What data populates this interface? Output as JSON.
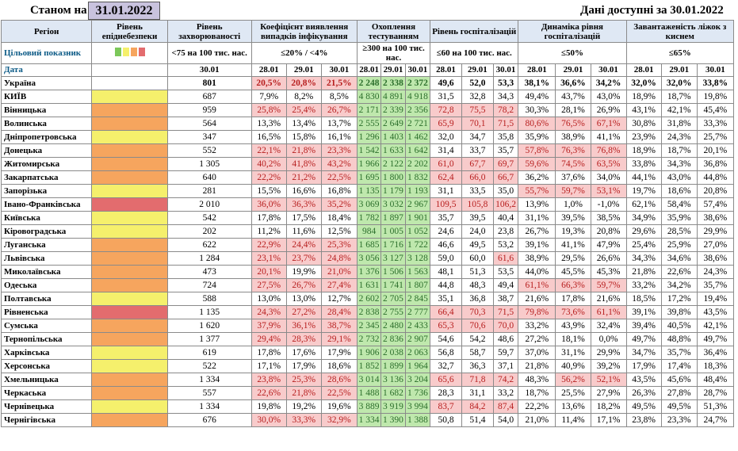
{
  "header": {
    "asof_label": "Станом на",
    "asof_date": "31.01.2022",
    "data_available": "Дані доступні за 30.01.2022"
  },
  "columns": {
    "region": "Регіон",
    "risk": "Рівень епіднебезпеки",
    "incidence": "Рівень захворюваності",
    "positivity": "Коефіцієнт виявлення випадків інфікування",
    "testing": "Охоплення тестуванням",
    "hosp": "Рівень госпіталізацій",
    "hosp_dyn": "Динаміка рівня госпіталізацій",
    "oxygen": "Завантаженість ліжок з киснем"
  },
  "targets": {
    "label": "Цільовий показник",
    "incidence": "<75 на 100 тис. нас.",
    "positivity": "≤20% / <4%",
    "testing": "≥300 на 100 тис. нас.",
    "hosp": "≤60 на 100 тис. нас.",
    "hosp_dyn": "≤50%",
    "oxygen": "≤65%"
  },
  "risk_legend_colors": [
    "#7cc85a",
    "#f5f06c",
    "#f6a55e",
    "#e36c6e"
  ],
  "dates": {
    "label": "Дата",
    "incidence": "30.01",
    "triple": [
      "28.01",
      "29.01",
      "30.01"
    ]
  },
  "thresholds": {
    "positivity_max": 20,
    "testing_min": 300,
    "hosp_max": 60,
    "hosp_dyn_max": 50
  },
  "rows": [
    {
      "region": "Україна",
      "risk": "",
      "inc": "801",
      "pos": [
        "20,5%",
        "20,8%",
        "21,5%"
      ],
      "test": [
        "2 248",
        "2 338",
        "2 372"
      ],
      "hosp": [
        "49,6",
        "52,0",
        "53,3"
      ],
      "dyn": [
        "38,1%",
        "36,6%",
        "34,2%"
      ],
      "oxy": [
        "32,0%",
        "32,0%",
        "33,8%"
      ]
    },
    {
      "region": "КИЇВ",
      "risk": "yellow",
      "inc": "687",
      "pos": [
        "7,9%",
        "8,2%",
        "8,5%"
      ],
      "test": [
        "4 830",
        "4 891",
        "4 918"
      ],
      "hosp": [
        "31,5",
        "32,8",
        "34,3"
      ],
      "dyn": [
        "49,4%",
        "43,7%",
        "43,0%"
      ],
      "oxy": [
        "18,9%",
        "18,7%",
        "19,8%"
      ]
    },
    {
      "region": "Вінницька",
      "risk": "orange",
      "inc": "959",
      "pos": [
        "25,8%",
        "25,4%",
        "26,7%"
      ],
      "test": [
        "2 171",
        "2 339",
        "2 356"
      ],
      "hosp": [
        "72,8",
        "75,5",
        "78,2"
      ],
      "dyn": [
        "30,3%",
        "28,1%",
        "26,9%"
      ],
      "oxy": [
        "43,1%",
        "42,1%",
        "45,4%"
      ]
    },
    {
      "region": "Волинська",
      "risk": "orange",
      "inc": "564",
      "pos": [
        "13,3%",
        "13,4%",
        "13,7%"
      ],
      "test": [
        "2 555",
        "2 649",
        "2 721"
      ],
      "hosp": [
        "65,9",
        "70,1",
        "71,5"
      ],
      "dyn": [
        "80,6%",
        "76,5%",
        "67,1%"
      ],
      "oxy": [
        "30,8%",
        "31,8%",
        "33,3%"
      ]
    },
    {
      "region": "Дніпропетровська",
      "risk": "yellow",
      "inc": "347",
      "pos": [
        "16,5%",
        "15,8%",
        "16,1%"
      ],
      "test": [
        "1 296",
        "1 403",
        "1 462"
      ],
      "hosp": [
        "32,0",
        "34,7",
        "35,8"
      ],
      "dyn": [
        "35,9%",
        "38,9%",
        "41,1%"
      ],
      "oxy": [
        "23,9%",
        "24,3%",
        "25,7%"
      ]
    },
    {
      "region": "Донецька",
      "risk": "orange",
      "inc": "552",
      "pos": [
        "22,1%",
        "21,8%",
        "23,3%"
      ],
      "test": [
        "1 542",
        "1 633",
        "1 642"
      ],
      "hosp": [
        "31,4",
        "33,7",
        "35,7"
      ],
      "dyn": [
        "57,8%",
        "76,3%",
        "76,8%"
      ],
      "oxy": [
        "18,9%",
        "18,7%",
        "20,1%"
      ]
    },
    {
      "region": "Житомирська",
      "risk": "orange",
      "inc": "1 305",
      "pos": [
        "40,2%",
        "41,8%",
        "43,2%"
      ],
      "test": [
        "1 966",
        "2 122",
        "2 202"
      ],
      "hosp": [
        "61,0",
        "67,7",
        "69,7"
      ],
      "dyn": [
        "59,6%",
        "74,5%",
        "63,5%"
      ],
      "oxy": [
        "33,8%",
        "34,3%",
        "36,8%"
      ]
    },
    {
      "region": "Закарпатська",
      "risk": "orange",
      "inc": "640",
      "pos": [
        "22,2%",
        "21,2%",
        "22,5%"
      ],
      "test": [
        "1 695",
        "1 800",
        "1 832"
      ],
      "hosp": [
        "62,4",
        "66,0",
        "66,7"
      ],
      "dyn": [
        "36,2%",
        "37,6%",
        "34,0%"
      ],
      "oxy": [
        "44,1%",
        "43,0%",
        "44,8%"
      ]
    },
    {
      "region": "Запорізька",
      "risk": "yellow",
      "inc": "281",
      "pos": [
        "15,5%",
        "16,6%",
        "16,8%"
      ],
      "test": [
        "1 135",
        "1 179",
        "1 193"
      ],
      "hosp": [
        "31,1",
        "33,5",
        "35,0"
      ],
      "dyn": [
        "55,7%",
        "59,7%",
        "53,1%"
      ],
      "oxy": [
        "19,7%",
        "18,6%",
        "20,8%"
      ]
    },
    {
      "region": "Івано-Франківська",
      "risk": "red",
      "inc": "2 010",
      "pos": [
        "36,0%",
        "36,3%",
        "35,2%"
      ],
      "test": [
        "3 069",
        "3 032",
        "2 967"
      ],
      "hosp": [
        "109,5",
        "105,8",
        "106,2"
      ],
      "dyn": [
        "13,9%",
        "1,0%",
        "-1,0%"
      ],
      "oxy": [
        "62,1%",
        "58,4%",
        "57,4%"
      ]
    },
    {
      "region": "Київська",
      "risk": "yellow",
      "inc": "542",
      "pos": [
        "17,8%",
        "17,5%",
        "18,4%"
      ],
      "test": [
        "1 782",
        "1 897",
        "1 901"
      ],
      "hosp": [
        "35,7",
        "39,5",
        "40,4"
      ],
      "dyn": [
        "31,1%",
        "39,5%",
        "38,5%"
      ],
      "oxy": [
        "34,9%",
        "35,9%",
        "38,6%"
      ]
    },
    {
      "region": "Кіровоградська",
      "risk": "yellow",
      "inc": "202",
      "pos": [
        "11,2%",
        "11,6%",
        "12,5%"
      ],
      "test": [
        "984",
        "1 005",
        "1 052"
      ],
      "hosp": [
        "24,6",
        "24,0",
        "23,8"
      ],
      "dyn": [
        "26,7%",
        "19,3%",
        "20,8%"
      ],
      "oxy": [
        "29,6%",
        "28,5%",
        "29,9%"
      ]
    },
    {
      "region": "Луганська",
      "risk": "orange",
      "inc": "622",
      "pos": [
        "22,9%",
        "24,4%",
        "25,3%"
      ],
      "test": [
        "1 685",
        "1 716",
        "1 722"
      ],
      "hosp": [
        "46,6",
        "49,5",
        "53,2"
      ],
      "dyn": [
        "39,1%",
        "41,1%",
        "47,9%"
      ],
      "oxy": [
        "25,4%",
        "25,9%",
        "27,0%"
      ]
    },
    {
      "region": "Львівська",
      "risk": "orange",
      "inc": "1 284",
      "pos": [
        "23,1%",
        "23,7%",
        "24,8%"
      ],
      "test": [
        "3 056",
        "3 127",
        "3 128"
      ],
      "hosp": [
        "59,0",
        "60,0",
        "61,6"
      ],
      "dyn": [
        "38,9%",
        "29,5%",
        "26,6%"
      ],
      "oxy": [
        "34,3%",
        "34,6%",
        "38,6%"
      ]
    },
    {
      "region": "Миколаївська",
      "risk": "orange",
      "inc": "473",
      "pos": [
        "20,1%",
        "19,9%",
        "21,0%"
      ],
      "test": [
        "1 376",
        "1 506",
        "1 563"
      ],
      "hosp": [
        "48,1",
        "51,3",
        "53,5"
      ],
      "dyn": [
        "44,0%",
        "45,5%",
        "45,3%"
      ],
      "oxy": [
        "21,8%",
        "22,6%",
        "24,3%"
      ]
    },
    {
      "region": "Одеська",
      "risk": "orange",
      "inc": "724",
      "pos": [
        "27,5%",
        "26,7%",
        "27,4%"
      ],
      "test": [
        "1 631",
        "1 741",
        "1 807"
      ],
      "hosp": [
        "44,8",
        "48,3",
        "49,4"
      ],
      "dyn": [
        "61,1%",
        "66,3%",
        "59,7%"
      ],
      "oxy": [
        "33,2%",
        "34,2%",
        "35,7%"
      ]
    },
    {
      "region": "Полтавська",
      "risk": "yellow",
      "inc": "588",
      "pos": [
        "13,0%",
        "13,0%",
        "12,7%"
      ],
      "test": [
        "2 602",
        "2 705",
        "2 845"
      ],
      "hosp": [
        "35,1",
        "36,8",
        "38,7"
      ],
      "dyn": [
        "21,6%",
        "17,8%",
        "21,6%"
      ],
      "oxy": [
        "18,5%",
        "17,2%",
        "19,4%"
      ]
    },
    {
      "region": "Рівненська",
      "risk": "red",
      "inc": "1 135",
      "pos": [
        "24,3%",
        "27,2%",
        "28,4%"
      ],
      "test": [
        "2 838",
        "2 755",
        "2 777"
      ],
      "hosp": [
        "66,4",
        "70,3",
        "71,5"
      ],
      "dyn": [
        "79,8%",
        "73,6%",
        "61,1%"
      ],
      "oxy": [
        "39,1%",
        "39,8%",
        "43,5%"
      ]
    },
    {
      "region": "Сумська",
      "risk": "orange",
      "inc": "1 620",
      "pos": [
        "37,9%",
        "36,1%",
        "38,7%"
      ],
      "test": [
        "2 345",
        "2 480",
        "2 433"
      ],
      "hosp": [
        "65,3",
        "70,6",
        "70,0"
      ],
      "dyn": [
        "33,2%",
        "43,9%",
        "32,4%"
      ],
      "oxy": [
        "39,4%",
        "40,5%",
        "42,1%"
      ]
    },
    {
      "region": "Тернопільська",
      "risk": "orange",
      "inc": "1 377",
      "pos": [
        "29,4%",
        "28,3%",
        "29,1%"
      ],
      "test": [
        "2 732",
        "2 836",
        "2 907"
      ],
      "hosp": [
        "54,6",
        "54,2",
        "48,6"
      ],
      "dyn": [
        "27,2%",
        "18,1%",
        "0,0%"
      ],
      "oxy": [
        "49,7%",
        "48,8%",
        "49,7%"
      ]
    },
    {
      "region": "Харківська",
      "risk": "yellow",
      "inc": "619",
      "pos": [
        "17,8%",
        "17,6%",
        "17,9%"
      ],
      "test": [
        "1 906",
        "2 038",
        "2 063"
      ],
      "hosp": [
        "56,8",
        "58,7",
        "59,7"
      ],
      "dyn": [
        "37,0%",
        "31,1%",
        "29,9%"
      ],
      "oxy": [
        "34,7%",
        "35,7%",
        "36,4%"
      ]
    },
    {
      "region": "Херсонська",
      "risk": "yellow",
      "inc": "522",
      "pos": [
        "17,1%",
        "17,9%",
        "18,6%"
      ],
      "test": [
        "1 852",
        "1 899",
        "1 964"
      ],
      "hosp": [
        "32,7",
        "36,3",
        "37,1"
      ],
      "dyn": [
        "21,8%",
        "40,9%",
        "39,2%"
      ],
      "oxy": [
        "17,9%",
        "17,4%",
        "18,3%"
      ]
    },
    {
      "region": "Хмельницька",
      "risk": "orange",
      "inc": "1 334",
      "pos": [
        "23,8%",
        "25,3%",
        "28,6%"
      ],
      "test": [
        "3 014",
        "3 136",
        "3 204"
      ],
      "hosp": [
        "65,6",
        "71,8",
        "74,2"
      ],
      "dyn": [
        "48,3%",
        "56,2%",
        "52,1%"
      ],
      "oxy": [
        "43,5%",
        "45,6%",
        "48,4%"
      ]
    },
    {
      "region": "Черкаська",
      "risk": "orange",
      "inc": "557",
      "pos": [
        "22,6%",
        "21,8%",
        "22,5%"
      ],
      "test": [
        "1 488",
        "1 682",
        "1 736"
      ],
      "hosp": [
        "28,3",
        "31,1",
        "33,2"
      ],
      "dyn": [
        "18,7%",
        "25,5%",
        "27,9%"
      ],
      "oxy": [
        "26,3%",
        "27,8%",
        "28,7%"
      ]
    },
    {
      "region": "Чернівецька",
      "risk": "yellow",
      "inc": "1 334",
      "pos": [
        "19,8%",
        "19,2%",
        "19,6%"
      ],
      "test": [
        "3 889",
        "3 919",
        "3 994"
      ],
      "hosp": [
        "83,7",
        "84,2",
        "87,4"
      ],
      "dyn": [
        "22,2%",
        "13,6%",
        "18,2%"
      ],
      "oxy": [
        "49,5%",
        "49,5%",
        "51,3%"
      ]
    },
    {
      "region": "Чернігівська",
      "risk": "orange",
      "inc": "676",
      "pos": [
        "30,0%",
        "33,3%",
        "32,9%"
      ],
      "test": [
        "1 334",
        "1 390",
        "1 388"
      ],
      "hosp": [
        "50,8",
        "51,4",
        "54,0"
      ],
      "dyn": [
        "21,0%",
        "11,4%",
        "17,1%"
      ],
      "oxy": [
        "23,8%",
        "23,3%",
        "24,7%"
      ]
    }
  ]
}
